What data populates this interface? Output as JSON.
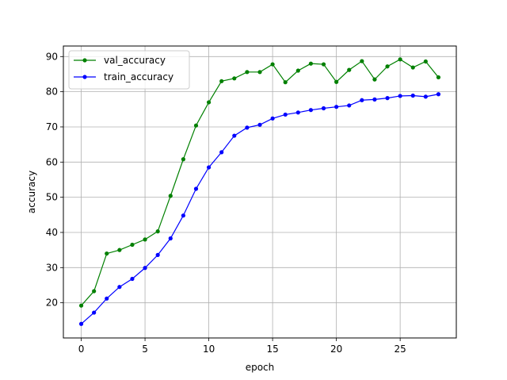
{
  "chart_data": {
    "type": "line",
    "title": "",
    "xlabel": "epoch",
    "ylabel": "accuracy",
    "xlim": [
      -1.4,
      29.4
    ],
    "ylim": [
      10,
      93
    ],
    "xticks": [
      0,
      5,
      10,
      15,
      20,
      25
    ],
    "yticks": [
      20,
      30,
      40,
      50,
      60,
      70,
      80,
      90
    ],
    "grid": true,
    "legend_position": "top-left",
    "x": [
      0,
      1,
      2,
      3,
      4,
      5,
      6,
      7,
      8,
      9,
      10,
      11,
      12,
      13,
      14,
      15,
      16,
      17,
      18,
      19,
      20,
      21,
      22,
      23,
      24,
      25,
      26,
      27,
      28
    ],
    "series": [
      {
        "name": "val_accuracy",
        "color": "#008000",
        "values": [
          19.2,
          23.3,
          34.0,
          35.0,
          36.5,
          38.0,
          40.3,
          50.4,
          60.8,
          70.4,
          77.0,
          83.0,
          83.8,
          85.6,
          85.6,
          87.8,
          82.7,
          86.0,
          88.0,
          87.8,
          82.8,
          86.2,
          88.7,
          83.5,
          87.2,
          89.2,
          86.9,
          88.6,
          84.1
        ]
      },
      {
        "name": "train_accuracy",
        "color": "#0000ff",
        "values": [
          14.0,
          17.2,
          21.2,
          24.5,
          26.8,
          29.9,
          33.6,
          38.3,
          44.8,
          52.4,
          58.5,
          62.8,
          67.5,
          69.8,
          70.6,
          72.4,
          73.5,
          74.1,
          74.8,
          75.3,
          75.7,
          76.1,
          77.6,
          77.8,
          78.2,
          78.8,
          78.9,
          78.6,
          79.3
        ]
      }
    ]
  }
}
